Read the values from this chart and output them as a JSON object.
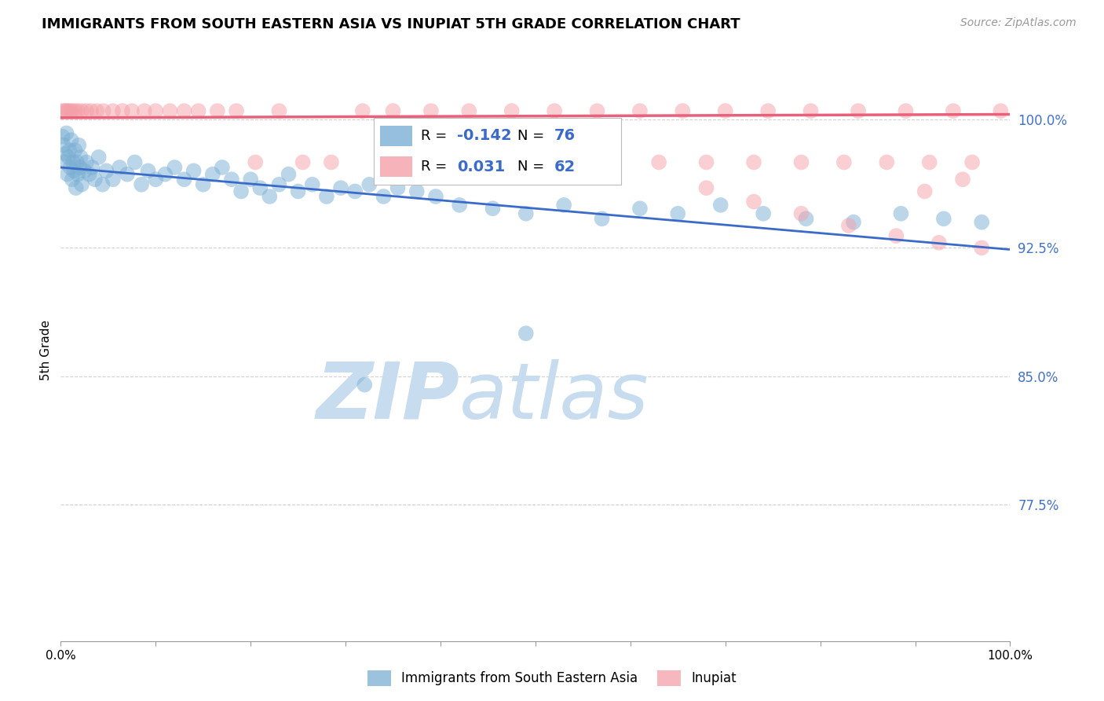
{
  "title": "IMMIGRANTS FROM SOUTH EASTERN ASIA VS INUPIAT 5TH GRADE CORRELATION CHART",
  "source_text": "Source: ZipAtlas.com",
  "ylabel": "5th Grade",
  "xlim": [
    0.0,
    1.0
  ],
  "ylim": [
    0.695,
    1.035
  ],
  "yticks": [
    0.775,
    0.85,
    0.925,
    1.0
  ],
  "ytick_labels": [
    "77.5%",
    "85.0%",
    "92.5%",
    "100.0%"
  ],
  "xtick_labels": [
    "0.0%",
    "",
    "",
    "",
    "",
    "",
    "",
    "",
    "",
    "",
    "100.0%"
  ],
  "legend_label_blue": "Immigrants from South Eastern Asia",
  "legend_label_pink": "Inupiat",
  "blue_R": -0.142,
  "blue_N": 76,
  "pink_R": 0.031,
  "pink_N": 62,
  "blue_color": "#7BAFD4",
  "pink_color": "#F4A0A8",
  "blue_line_color": "#3A6BC9",
  "pink_line_color": "#E8607A",
  "ytick_color": "#4472C4",
  "watermark_color": "#C8DCF0",
  "blue_trend_start": 0.972,
  "blue_trend_end": 0.924,
  "pink_trend_start": 1.001,
  "pink_trend_end": 1.003,
  "blue_points": [
    [
      0.002,
      0.99
    ],
    [
      0.003,
      0.985
    ],
    [
      0.004,
      0.975
    ],
    [
      0.005,
      0.98
    ],
    [
      0.006,
      0.992
    ],
    [
      0.007,
      0.968
    ],
    [
      0.008,
      0.978
    ],
    [
      0.009,
      0.982
    ],
    [
      0.01,
      0.972
    ],
    [
      0.011,
      0.988
    ],
    [
      0.012,
      0.965
    ],
    [
      0.013,
      0.975
    ],
    [
      0.014,
      0.97
    ],
    [
      0.015,
      0.982
    ],
    [
      0.016,
      0.96
    ],
    [
      0.017,
      0.975
    ],
    [
      0.018,
      0.968
    ],
    [
      0.019,
      0.985
    ],
    [
      0.02,
      0.972
    ],
    [
      0.021,
      0.978
    ],
    [
      0.022,
      0.962
    ],
    [
      0.025,
      0.97
    ],
    [
      0.027,
      0.975
    ],
    [
      0.03,
      0.968
    ],
    [
      0.033,
      0.972
    ],
    [
      0.036,
      0.965
    ],
    [
      0.04,
      0.978
    ],
    [
      0.044,
      0.962
    ],
    [
      0.048,
      0.97
    ],
    [
      0.055,
      0.965
    ],
    [
      0.062,
      0.972
    ],
    [
      0.07,
      0.968
    ],
    [
      0.078,
      0.975
    ],
    [
      0.085,
      0.962
    ],
    [
      0.092,
      0.97
    ],
    [
      0.1,
      0.965
    ],
    [
      0.11,
      0.968
    ],
    [
      0.12,
      0.972
    ],
    [
      0.13,
      0.965
    ],
    [
      0.14,
      0.97
    ],
    [
      0.15,
      0.962
    ],
    [
      0.16,
      0.968
    ],
    [
      0.17,
      0.972
    ],
    [
      0.18,
      0.965
    ],
    [
      0.19,
      0.958
    ],
    [
      0.2,
      0.965
    ],
    [
      0.21,
      0.96
    ],
    [
      0.22,
      0.955
    ],
    [
      0.23,
      0.962
    ],
    [
      0.24,
      0.968
    ],
    [
      0.25,
      0.958
    ],
    [
      0.265,
      0.962
    ],
    [
      0.28,
      0.955
    ],
    [
      0.295,
      0.96
    ],
    [
      0.31,
      0.958
    ],
    [
      0.325,
      0.962
    ],
    [
      0.34,
      0.955
    ],
    [
      0.355,
      0.96
    ],
    [
      0.375,
      0.958
    ],
    [
      0.395,
      0.955
    ],
    [
      0.42,
      0.95
    ],
    [
      0.455,
      0.948
    ],
    [
      0.49,
      0.945
    ],
    [
      0.53,
      0.95
    ],
    [
      0.57,
      0.942
    ],
    [
      0.61,
      0.948
    ],
    [
      0.65,
      0.945
    ],
    [
      0.695,
      0.95
    ],
    [
      0.74,
      0.945
    ],
    [
      0.785,
      0.942
    ],
    [
      0.835,
      0.94
    ],
    [
      0.885,
      0.945
    ],
    [
      0.93,
      0.942
    ],
    [
      0.97,
      0.94
    ],
    [
      0.49,
      0.875
    ],
    [
      0.32,
      0.845
    ]
  ],
  "pink_points": [
    [
      0.002,
      1.005
    ],
    [
      0.004,
      1.005
    ],
    [
      0.006,
      1.005
    ],
    [
      0.008,
      1.005
    ],
    [
      0.01,
      1.005
    ],
    [
      0.012,
      1.005
    ],
    [
      0.015,
      1.005
    ],
    [
      0.018,
      1.005
    ],
    [
      0.022,
      1.005
    ],
    [
      0.027,
      1.005
    ],
    [
      0.032,
      1.005
    ],
    [
      0.038,
      1.005
    ],
    [
      0.045,
      1.005
    ],
    [
      0.055,
      1.005
    ],
    [
      0.065,
      1.005
    ],
    [
      0.075,
      1.005
    ],
    [
      0.088,
      1.005
    ],
    [
      0.1,
      1.005
    ],
    [
      0.115,
      1.005
    ],
    [
      0.13,
      1.005
    ],
    [
      0.145,
      1.005
    ],
    [
      0.165,
      1.005
    ],
    [
      0.185,
      1.005
    ],
    [
      0.205,
      0.975
    ],
    [
      0.23,
      1.005
    ],
    [
      0.255,
      0.975
    ],
    [
      0.285,
      0.975
    ],
    [
      0.318,
      1.005
    ],
    [
      0.35,
      1.005
    ],
    [
      0.39,
      1.005
    ],
    [
      0.43,
      1.005
    ],
    [
      0.475,
      1.005
    ],
    [
      0.52,
      1.005
    ],
    [
      0.565,
      1.005
    ],
    [
      0.61,
      1.005
    ],
    [
      0.655,
      1.005
    ],
    [
      0.7,
      1.005
    ],
    [
      0.745,
      1.005
    ],
    [
      0.79,
      1.005
    ],
    [
      0.84,
      1.005
    ],
    [
      0.89,
      1.005
    ],
    [
      0.94,
      1.005
    ],
    [
      0.99,
      1.005
    ],
    [
      0.53,
      0.975
    ],
    [
      0.58,
      0.975
    ],
    [
      0.63,
      0.975
    ],
    [
      0.68,
      0.975
    ],
    [
      0.73,
      0.975
    ],
    [
      0.78,
      0.975
    ],
    [
      0.825,
      0.975
    ],
    [
      0.87,
      0.975
    ],
    [
      0.915,
      0.975
    ],
    [
      0.96,
      0.975
    ],
    [
      0.68,
      0.96
    ],
    [
      0.73,
      0.952
    ],
    [
      0.78,
      0.945
    ],
    [
      0.83,
      0.938
    ],
    [
      0.88,
      0.932
    ],
    [
      0.925,
      0.928
    ],
    [
      0.97,
      0.925
    ],
    [
      0.95,
      0.965
    ],
    [
      0.91,
      0.958
    ]
  ]
}
